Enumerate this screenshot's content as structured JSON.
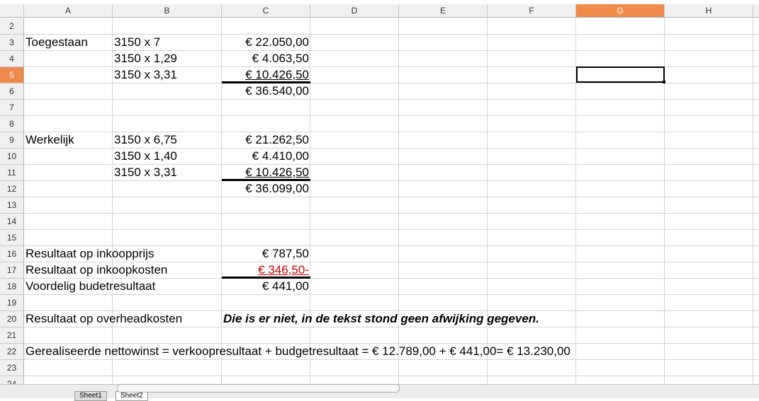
{
  "columns": [
    "A",
    "B",
    "C",
    "D",
    "E",
    "F",
    "G",
    "H"
  ],
  "rows": [
    {
      "number": "2",
      "cells": {}
    },
    {
      "number": "3",
      "cells": {
        "A": {
          "text": "Toegestaan"
        },
        "B": {
          "text": "3150 x 7"
        },
        "C": {
          "text": "€ 22.050,00",
          "align": "right"
        }
      }
    },
    {
      "number": "4",
      "cells": {
        "B": {
          "text": "3150 x 1,29"
        },
        "C": {
          "text": "€ 4.063,50",
          "align": "right"
        }
      }
    },
    {
      "number": "5",
      "cells": {
        "B": {
          "text": "3150 x 3,31"
        },
        "C": {
          "text": "€ 10.426,50",
          "align": "right",
          "underline": true,
          "border_bottom": true
        }
      }
    },
    {
      "number": "6",
      "cells": {
        "C": {
          "text": "€ 36.540,00",
          "align": "right"
        }
      }
    },
    {
      "number": "7",
      "cells": {}
    },
    {
      "number": "8",
      "cells": {}
    },
    {
      "number": "9",
      "cells": {
        "A": {
          "text": "Werkelijk"
        },
        "B": {
          "text": "3150 x 6,75"
        },
        "C": {
          "text": "€ 21.262,50",
          "align": "right"
        }
      }
    },
    {
      "number": "10",
      "cells": {
        "B": {
          "text": "3150 x 1,40"
        },
        "C": {
          "text": "€ 4.410,00",
          "align": "right"
        }
      }
    },
    {
      "number": "11",
      "cells": {
        "B": {
          "text": "3150 x 3,31"
        },
        "C": {
          "text": "€ 10.426,50",
          "align": "right",
          "underline": true,
          "border_bottom": true
        }
      }
    },
    {
      "number": "12",
      "cells": {
        "C": {
          "text": "€ 36.099,00",
          "align": "right"
        }
      }
    },
    {
      "number": "13",
      "cells": {}
    },
    {
      "number": "14",
      "cells": {}
    },
    {
      "number": "15",
      "cells": {}
    },
    {
      "number": "16",
      "cells": {
        "A": {
          "text": "Resultaat op inkoopprijs"
        },
        "C": {
          "text": "€ 787,50",
          "align": "right"
        }
      }
    },
    {
      "number": "17",
      "cells": {
        "A": {
          "text": "Resultaat op inkoopkosten"
        },
        "C": {
          "text": "€ 346,50-",
          "align": "right",
          "underline": true,
          "border_bottom": true,
          "color": "#cc0000"
        }
      }
    },
    {
      "number": "18",
      "cells": {
        "A": {
          "text": "Voordelig budetresultaat"
        },
        "C": {
          "text": "€ 441,00",
          "align": "right"
        }
      }
    },
    {
      "number": "19",
      "cells": {}
    },
    {
      "number": "20",
      "cells": {
        "A": {
          "text": "Resultaat op overheadkosten"
        },
        "C": {
          "text": "Die is er niet, in de tekst stond geen afwijking gegeven.",
          "bold_italic": true
        }
      }
    },
    {
      "number": "21",
      "cells": {}
    },
    {
      "number": "22",
      "cells": {
        "A": {
          "text": "Gerealiseerde nettowinst = verkoopresultaat + budgetresultaat = € 12.789,00 + € 441,00= € 13.230,00"
        }
      }
    },
    {
      "number": "23",
      "cells": {}
    },
    {
      "number": "24",
      "cells": {}
    }
  ],
  "selected": {
    "column": "G",
    "row": "5"
  },
  "sheet_tabs": [
    "Sheet1",
    "Sheet2"
  ]
}
